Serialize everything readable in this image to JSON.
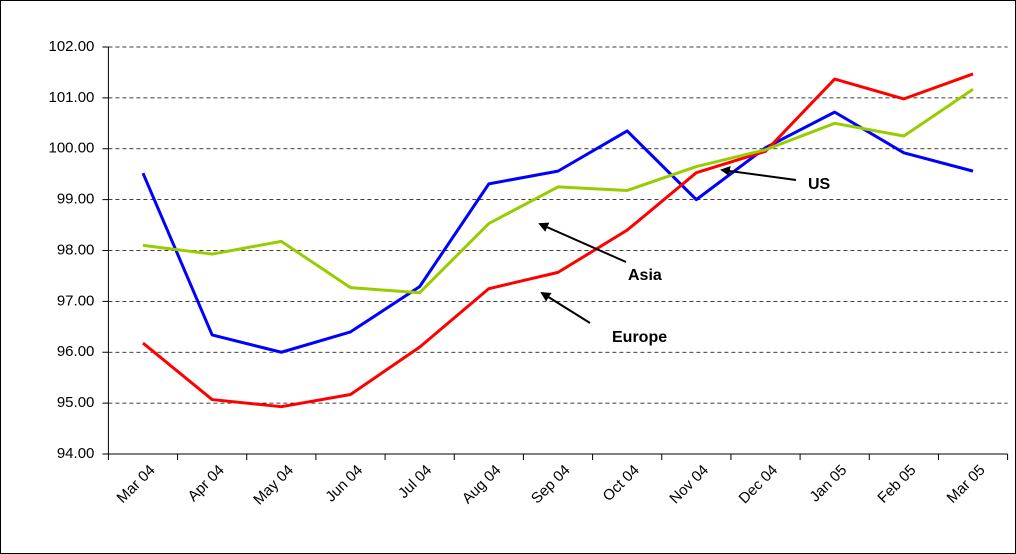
{
  "chart_data": {
    "type": "line",
    "categories": [
      "Mar 04",
      "Apr 04",
      "May 04",
      "Jun 04",
      "Jul 04",
      "Aug 04",
      "Sep 04",
      "Oct 04",
      "Nov 04",
      "Dec 04",
      "Jan 05",
      "Feb 05",
      "Mar 05"
    ],
    "series": [
      {
        "name": "US",
        "color": "#0000ff",
        "values": [
          99.52,
          96.34,
          96.0,
          96.4,
          97.29,
          99.31,
          99.56,
          100.35,
          99.0,
          100.02,
          100.72,
          99.92,
          99.56
        ]
      },
      {
        "name": "Europe",
        "color": "#ff0000",
        "values": [
          96.18,
          95.07,
          94.93,
          95.17,
          96.1,
          97.25,
          97.57,
          98.4,
          99.53,
          99.95,
          101.37,
          100.98,
          101.47
        ]
      },
      {
        "name": "Asia",
        "color": "#99cc00",
        "values": [
          98.1,
          97.93,
          98.18,
          97.27,
          97.17,
          98.53,
          99.25,
          99.18,
          99.65,
          99.98,
          100.5,
          100.25,
          101.17
        ]
      }
    ],
    "ylim": [
      94,
      102
    ],
    "yticks": [
      {
        "value": 94,
        "label": "94.00"
      },
      {
        "value": 95,
        "label": "95.00"
      },
      {
        "value": 96,
        "label": "96.00"
      },
      {
        "value": 97,
        "label": "97.00"
      },
      {
        "value": 98,
        "label": "98.00"
      },
      {
        "value": 99,
        "label": "99.00"
      },
      {
        "value": 100,
        "label": "100.00"
      },
      {
        "value": 101,
        "label": "101.00"
      },
      {
        "value": 102,
        "label": "102.00"
      }
    ],
    "grid": true
  }
}
